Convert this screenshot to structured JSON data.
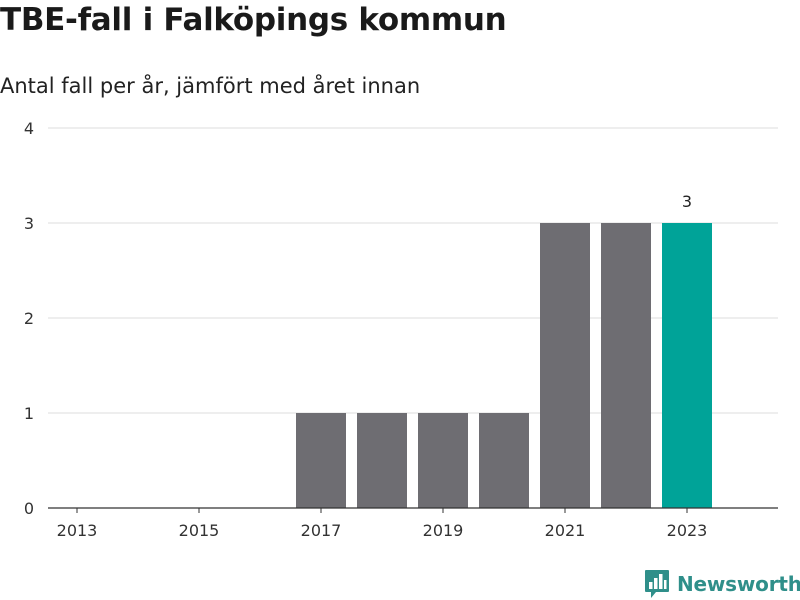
{
  "header": {
    "title": "TBE-fall i Falköpings kommun",
    "subtitle": "Antal fall per år, jämfört med året innan"
  },
  "brand": {
    "name": "Newsworthy",
    "icon": "bar-chart-speech-bubble-icon",
    "color": "#2f8f8a"
  },
  "chart_data": {
    "type": "bar",
    "categories": [
      "2013",
      "2014",
      "2015",
      "2016",
      "2017",
      "2018",
      "2019",
      "2020",
      "2021",
      "2022",
      "2023"
    ],
    "values": [
      0,
      0,
      0,
      0,
      1,
      1,
      1,
      1,
      3,
      3,
      3
    ],
    "x_tick_labels": [
      "2013",
      "2015",
      "2017",
      "2019",
      "2021",
      "2023"
    ],
    "y_ticks": [
      0,
      1,
      2,
      3,
      4
    ],
    "ylim": [
      0,
      4
    ],
    "grid": true,
    "bar_color": "#6e6d72",
    "highlight_color": "#00a398",
    "highlight_category": "2023",
    "data_labels": [
      {
        "category": "2023",
        "text": "3"
      }
    ]
  }
}
